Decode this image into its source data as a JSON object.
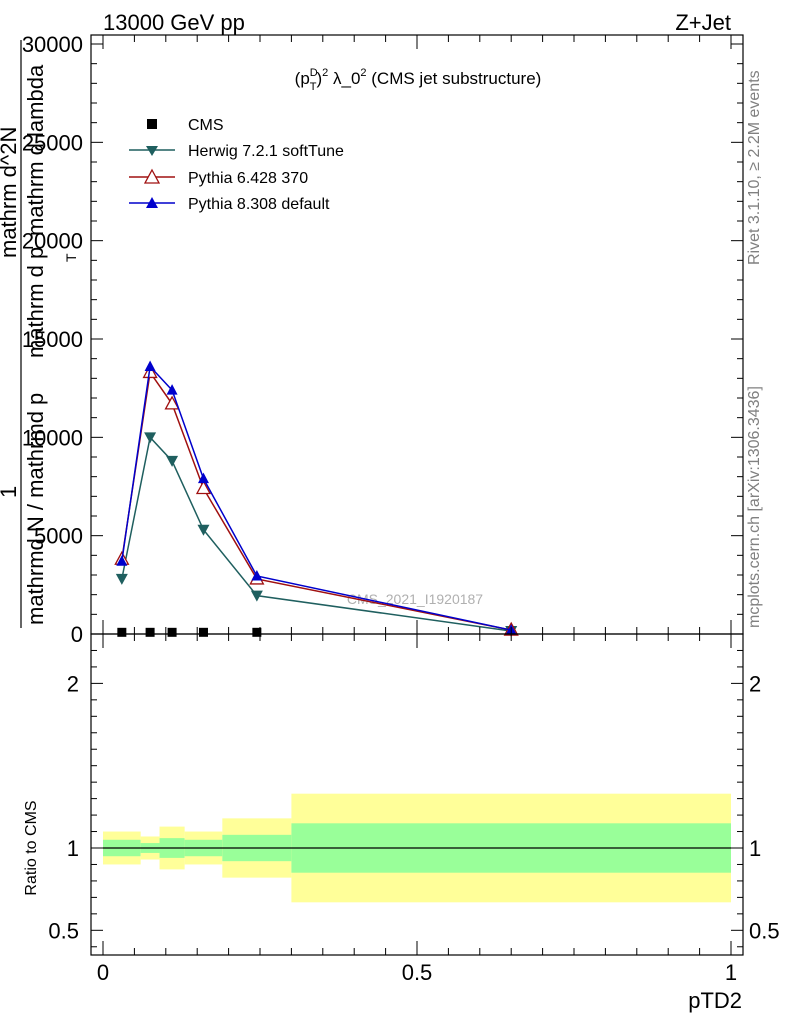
{
  "header": {
    "left": "13000 GeV pp",
    "right": "Z+Jet"
  },
  "plot_title": "(p_T^D)^2 λ_0^2 (CMS jet substructure)",
  "plot_title_parts": {
    "open": "(p",
    "sup_d": "D",
    "sub_t": "T",
    "close": ")",
    "sup_2a": "2",
    "lambda": " λ_0",
    "sup_2b": "2",
    "rest": " (CMS jet substructure)"
  },
  "side_labels": {
    "rivet": "Rivet 3.1.10, ≥ 2.2M events",
    "mcplots": "mcplots.cern.ch [arXiv:1306.3436]"
  },
  "watermark": "CMS_2021_I1920187",
  "ylabel_main": {
    "one": "1",
    "denominator": "mathrmd N / mathrmd p",
    "numerator_line1": "mathrm d^2N",
    "numerator_line2": "mathrm d p",
    "numerator_rest": "mathrm d lambda",
    "sub_t": "T"
  },
  "ylabel_ratio": "Ratio to CMS",
  "xlabel": "pTD2",
  "legend": {
    "cms": "CMS",
    "herwig": "Herwig 7.2.1 softTune",
    "pythia6": "Pythia 6.428 370",
    "pythia8": "Pythia 8.308 default"
  },
  "colors": {
    "cms": "#000000",
    "herwig": "#1f5f5f",
    "pythia6": "#a01010",
    "pythia8": "#0000cc",
    "band_inner": "#99ff99",
    "band_outer": "#ffff99"
  },
  "chart_data": [
    {
      "type": "line",
      "panel": "main",
      "xlim": [
        0,
        1
      ],
      "ylim": [
        0,
        30000
      ],
      "yticks": [
        0,
        5000,
        10000,
        15000,
        20000,
        25000,
        30000
      ],
      "ytick_labels": [
        "0",
        "5000",
        "10000",
        "15000",
        "20000",
        "25000",
        "30000"
      ],
      "series": [
        {
          "name": "CMS",
          "marker": "square",
          "x": [
            0.03,
            0.075,
            0.11,
            0.16,
            0.245
          ],
          "y": [
            60,
            60,
            60,
            60,
            60
          ]
        },
        {
          "name": "Herwig 7.2.1 softTune",
          "marker": "triangle-down",
          "x": [
            0.03,
            0.075,
            0.11,
            0.16,
            0.245,
            0.65
          ],
          "y": [
            2800,
            10000,
            8800,
            5300,
            1950,
            150
          ]
        },
        {
          "name": "Pythia 6.428 370",
          "marker": "triangle-up-open",
          "x": [
            0.03,
            0.075,
            0.11,
            0.16,
            0.245,
            0.65
          ],
          "y": [
            3800,
            13300,
            11700,
            7400,
            2800,
            200
          ]
        },
        {
          "name": "Pythia 8.308 default",
          "marker": "triangle-up",
          "x": [
            0.03,
            0.075,
            0.11,
            0.16,
            0.245,
            0.65
          ],
          "y": [
            3700,
            13600,
            12400,
            7900,
            2950,
            200
          ]
        }
      ]
    },
    {
      "type": "area",
      "panel": "ratio",
      "xlim": [
        0,
        1
      ],
      "ylim": [
        0.35,
        2.3
      ],
      "xticks": [
        0,
        0.5,
        1
      ],
      "xtick_labels": [
        "0",
        "0.5",
        "1"
      ],
      "yticks": [
        0.5,
        1,
        2
      ],
      "ytick_labels": [
        "0.5",
        "1",
        "2"
      ],
      "bands": [
        {
          "x0": 0.0,
          "x1": 0.06,
          "inner": [
            0.95,
            1.05
          ],
          "outer": [
            0.9,
            1.1
          ]
        },
        {
          "x0": 0.06,
          "x1": 0.09,
          "inner": [
            0.97,
            1.03
          ],
          "outer": [
            0.93,
            1.07
          ]
        },
        {
          "x0": 0.09,
          "x1": 0.13,
          "inner": [
            0.94,
            1.06
          ],
          "outer": [
            0.87,
            1.13
          ]
        },
        {
          "x0": 0.13,
          "x1": 0.19,
          "inner": [
            0.95,
            1.05
          ],
          "outer": [
            0.9,
            1.1
          ]
        },
        {
          "x0": 0.19,
          "x1": 0.3,
          "inner": [
            0.92,
            1.08
          ],
          "outer": [
            0.82,
            1.18
          ]
        },
        {
          "x0": 0.3,
          "x1": 1.0,
          "inner": [
            0.85,
            1.15
          ],
          "outer": [
            0.67,
            1.33
          ]
        }
      ]
    }
  ]
}
